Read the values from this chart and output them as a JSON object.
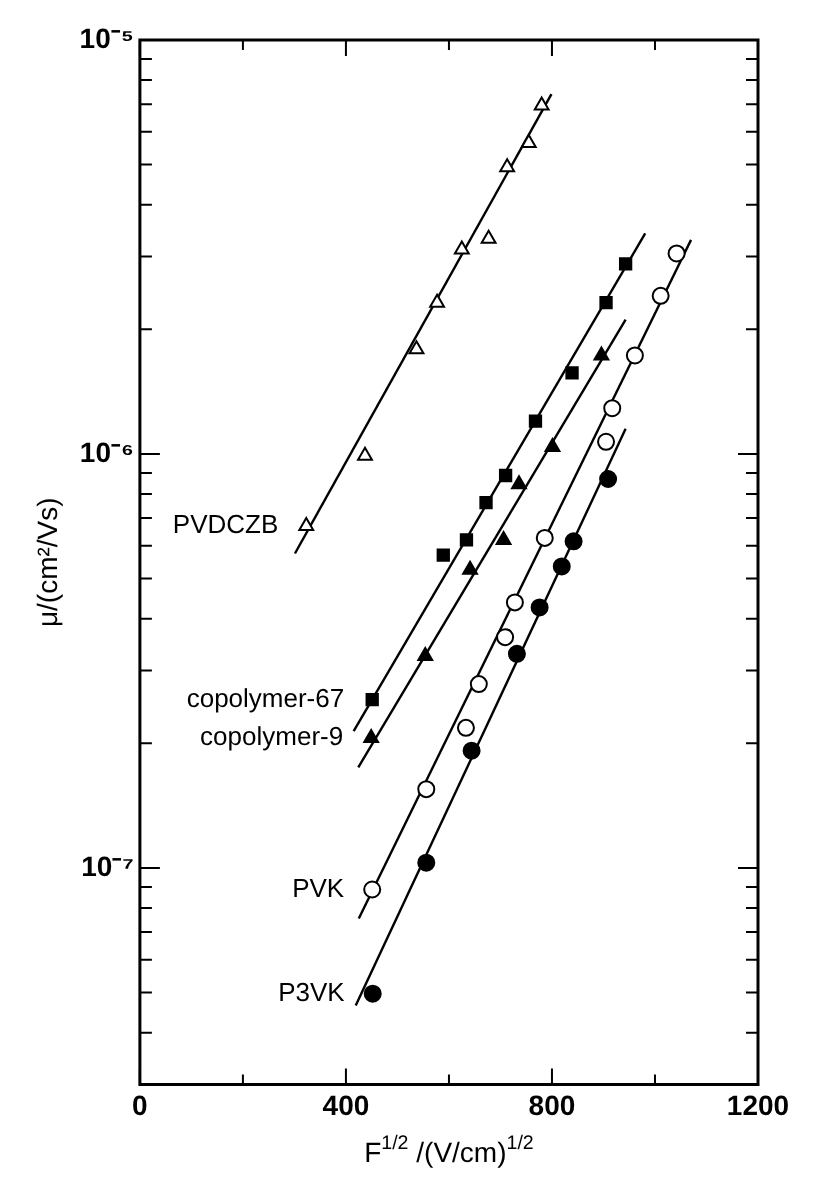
{
  "chart_data": {
    "type": "scatter",
    "xlabel": "F$^{1/2}$ /(V/cm)$^{1/2}$",
    "ylabel": "μ/(cm²/Vs)",
    "log": "y",
    "xlim": [
      0,
      1200
    ],
    "xticks": [
      0,
      {
        "value": 200,
        "label": null
      },
      400,
      {
        "value": 600,
        "label": null
      },
      800,
      {
        "value": 1000,
        "label": null
      },
      1200
    ],
    "ylim": [
      3e-08,
      1e-05
    ],
    "yticks": [
      {
        "value": 4e-08,
        "label": null
      },
      {
        "value": 5e-08,
        "label": null
      },
      {
        "value": 6e-08,
        "label": null
      },
      {
        "value": 7e-08,
        "label": null
      },
      {
        "value": 8e-08,
        "label": null
      },
      {
        "value": 9e-08,
        "label": null
      },
      {
        "value": 1e-07,
        "label": "10⁻⁷"
      },
      {
        "value": 2e-07,
        "label": null
      },
      {
        "value": 3e-07,
        "label": null
      },
      {
        "value": 4e-07,
        "label": null
      },
      {
        "value": 5e-07,
        "label": null
      },
      {
        "value": 6e-07,
        "label": null
      },
      {
        "value": 7e-07,
        "label": null
      },
      {
        "value": 8e-07,
        "label": null
      },
      {
        "value": 9e-07,
        "label": null
      },
      {
        "value": 1e-06,
        "label": "10⁻⁶"
      },
      {
        "value": 2e-06,
        "label": null
      },
      {
        "value": 3e-06,
        "label": null
      },
      {
        "value": 4e-06,
        "label": null
      },
      {
        "value": 5e-06,
        "label": null
      },
      {
        "value": 6e-06,
        "label": null
      },
      {
        "value": 7e-06,
        "label": null
      },
      {
        "value": 8e-06,
        "label": null
      },
      {
        "value": 9e-06,
        "label": null
      },
      {
        "value": 1e-05,
        "label": "10⁻⁵"
      }
    ],
    "grid": false,
    "legend": false,
    "series": [
      {
        "name": "PVDCZB",
        "color": "#ffffff",
        "marker": "triangle",
        "x": [
          323,
          437,
          537,
          577,
          625,
          677,
          713,
          755,
          780
        ],
        "values": [
          6.7e-07,
          9.9e-07,
          1.79e-06,
          2.32e-06,
          3.12e-06,
          3.31e-06,
          4.93e-06,
          5.64e-06,
          6.95e-06
        ]
      },
      {
        "name": "copolymer-67",
        "color": "#000000",
        "marker": "square",
        "x": [
          451,
          589,
          634,
          672,
          710,
          768,
          839,
          905,
          943
        ],
        "values": [
          2.55e-07,
          5.7e-07,
          6.2e-07,
          7.63e-07,
          8.87e-07,
          1.2e-06,
          1.57e-06,
          2.32e-06,
          2.88e-06
        ]
      },
      {
        "name": "copolymer-9",
        "color": "#000000",
        "marker": "triangle",
        "x": [
          449,
          554,
          641,
          706,
          736,
          801,
          896
        ],
        "values": [
          2.06e-07,
          3.25e-07,
          5.25e-07,
          6.2e-07,
          8.45e-07,
          1.04e-06,
          1.73e-06
        ]
      },
      {
        "name": "PVK",
        "color": "#ffffff",
        "marker": "circle",
        "x": [
          451,
          556,
          633,
          658,
          709,
          728,
          786,
          905,
          917,
          961,
          1011,
          1042
        ],
        "values": [
          8.87e-08,
          1.55e-07,
          2.18e-07,
          2.78e-07,
          3.61e-07,
          4.38e-07,
          6.27e-07,
          1.07e-06,
          1.29e-06,
          1.73e-06,
          2.41e-06,
          3.05e-06
        ]
      },
      {
        "name": "P3VK",
        "color": "#000000",
        "marker": "circle",
        "x": [
          452,
          556,
          644,
          732,
          776,
          819,
          842,
          909
        ],
        "values": [
          4.97e-08,
          1.03e-07,
          1.92e-07,
          3.29e-07,
          4.26e-07,
          5.35e-07,
          6.15e-07,
          8.7e-07
        ]
      },
      {
        "type": "line",
        "color": "#000000",
        "marker": "none",
        "x": [
          301,
          799
        ],
        "values": [
          5.75e-07,
          7.4e-06
        ]
      },
      {
        "type": "line",
        "color": "#000000",
        "marker": "none",
        "x": [
          415,
          981
        ],
        "values": [
          2.14e-07,
          3.41e-06
        ]
      },
      {
        "type": "line",
        "color": "#000000",
        "marker": "none",
        "x": [
          424,
          943
        ],
        "values": [
          1.75e-07,
          2.11e-06
        ]
      },
      {
        "type": "line",
        "color": "#000000",
        "marker": "none",
        "x": [
          425,
          1070
        ],
        "values": [
          7.55e-08,
          3.29e-06
        ]
      },
      {
        "type": "line",
        "color": "#000000",
        "marker": "none",
        "x": [
          419,
          943
        ],
        "values": [
          4.65e-08,
          1.15e-06
        ]
      }
    ]
  }
}
